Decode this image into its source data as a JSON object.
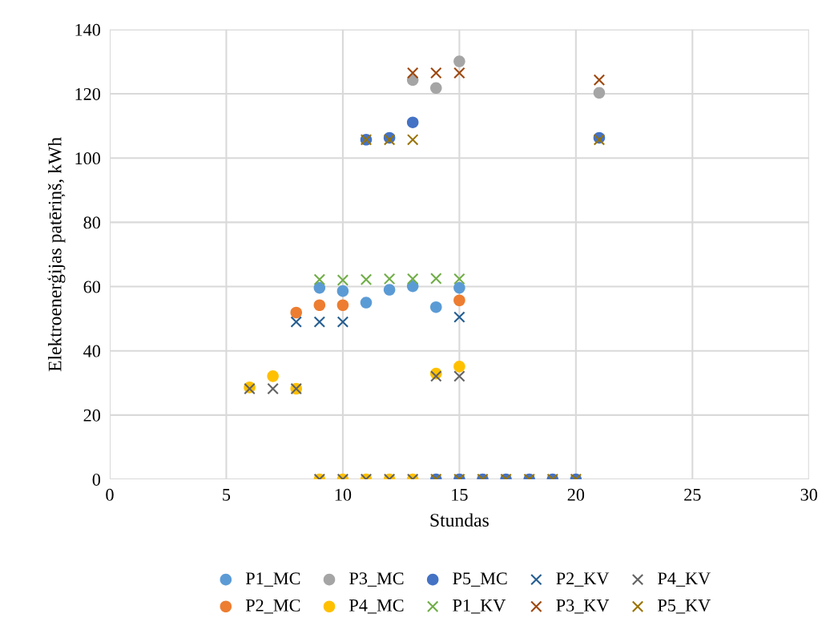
{
  "chart_data": {
    "type": "scatter",
    "xlabel": "Stundas",
    "ylabel": "Elektroenerģijas patēriņš, kWh",
    "xlim": [
      0,
      30
    ],
    "xticks": [
      0,
      5,
      10,
      15,
      20,
      25,
      30
    ],
    "ylim": [
      0,
      140
    ],
    "yticks": [
      0,
      20,
      40,
      60,
      80,
      100,
      120,
      140
    ],
    "grid": true,
    "legend": "bottom",
    "series": [
      {
        "name": "P1_MC",
        "color": "#5b9bd5",
        "marker": "circle",
        "x": [
          9,
          10,
          11,
          12,
          13,
          14,
          15
        ],
        "values": [
          59.6,
          58.6,
          55.0,
          59.0,
          60.1,
          53.6,
          59.6
        ]
      },
      {
        "name": "P2_MC",
        "color": "#ed7d31",
        "marker": "circle",
        "x": [
          8,
          9,
          10,
          15
        ],
        "values": [
          51.9,
          54.2,
          54.2,
          55.7
        ]
      },
      {
        "name": "P3_MC",
        "color": "#a5a5a5",
        "marker": "circle",
        "x": [
          13,
          14,
          15,
          21
        ],
        "values": [
          124.3,
          121.8,
          130.1,
          120.3
        ]
      },
      {
        "name": "P4_MC",
        "color": "#ffc000",
        "marker": "circle",
        "x": [
          6,
          7,
          8,
          9,
          10,
          11,
          12,
          13,
          14,
          15
        ],
        "values": [
          28.6,
          32.1,
          28.2,
          0,
          0,
          0,
          0,
          0,
          32.9,
          35.1
        ]
      },
      {
        "name": "P5_MC",
        "color": "#4472c4",
        "marker": "circle",
        "x": [
          11,
          12,
          13,
          14,
          15,
          16,
          17,
          18,
          19,
          20,
          21
        ],
        "values": [
          105.7,
          106.3,
          111.1,
          0,
          0,
          0,
          0,
          0,
          0,
          0,
          106.3
        ]
      },
      {
        "name": "P1_KV",
        "color": "#70ad47",
        "marker": "cross",
        "x": [
          9,
          10,
          11,
          12,
          13,
          14,
          15
        ],
        "values": [
          62.2,
          62.0,
          62.2,
          62.4,
          62.4,
          62.5,
          62.4
        ]
      },
      {
        "name": "P2_KV",
        "color": "#255e91",
        "marker": "cross",
        "x": [
          8,
          9,
          10,
          15
        ],
        "values": [
          49.0,
          49.0,
          49.0,
          50.5
        ]
      },
      {
        "name": "P3_KV",
        "color": "#9e480e",
        "marker": "cross",
        "x": [
          13,
          14,
          15,
          21
        ],
        "values": [
          126.5,
          126.5,
          126.5,
          124.3
        ]
      },
      {
        "name": "P4_KV",
        "color": "#636363",
        "marker": "cross",
        "x": [
          6,
          7,
          8,
          9,
          10,
          11,
          12,
          13,
          14,
          15
        ],
        "values": [
          28.2,
          28.2,
          28.2,
          0,
          0,
          0,
          0,
          0,
          32.1,
          32.1
        ]
      },
      {
        "name": "P5_KV",
        "color": "#997300",
        "marker": "cross",
        "x": [
          11,
          12,
          13,
          14,
          15,
          16,
          17,
          18,
          19,
          20,
          21
        ],
        "values": [
          105.7,
          105.7,
          105.7,
          0,
          0,
          0,
          0,
          0,
          0,
          0,
          105.7
        ]
      }
    ]
  }
}
